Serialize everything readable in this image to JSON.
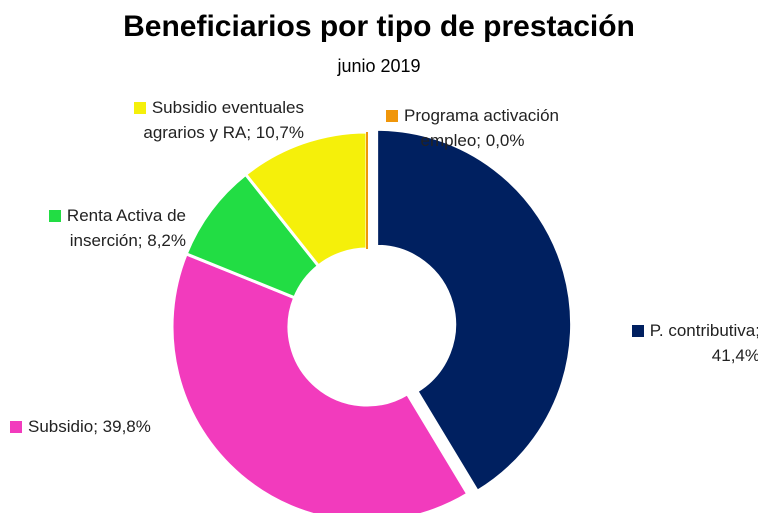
{
  "chart_data": {
    "type": "donut",
    "title": "Beneficiarios por tipo de prestación",
    "subtitle": "junio 2019",
    "categories": [
      "P. contributiva",
      "Subsidio",
      "Renta Activa de inserción",
      "Subsidio eventuales agrarios y RA",
      "Programa activación empleo"
    ],
    "values": [
      41.4,
      39.8,
      8.2,
      10.7,
      0.0
    ],
    "value_labels": [
      "41,4%",
      "39,8%",
      "8,2%",
      "10,7%",
      "0,0%"
    ],
    "label_separator": "; ",
    "colors": [
      "#002060",
      "#f23bbd",
      "#22dd44",
      "#f5f00a",
      "#f0960a"
    ]
  }
}
